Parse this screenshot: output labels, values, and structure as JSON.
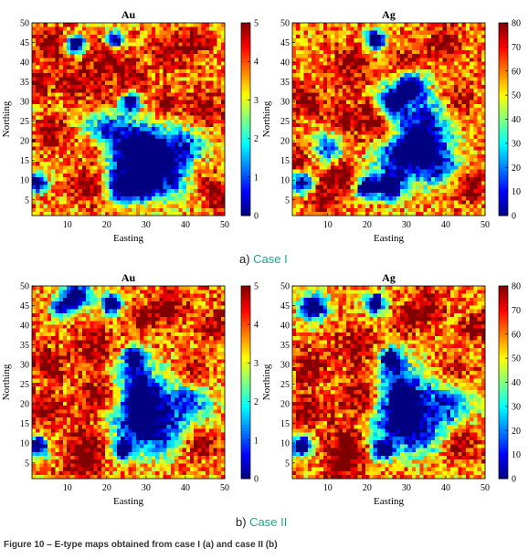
{
  "figure_caption": "Figure 10 – E-type maps obtained from case I (a) and case II (b)",
  "case_labels": [
    {
      "prefix": "a) ",
      "name": "Case I"
    },
    {
      "prefix": "b) ",
      "name": "Case II"
    }
  ],
  "chart_data": [
    {
      "type": "heatmap",
      "title": "Au",
      "xlabel": "Easting",
      "ylabel": "Northing",
      "xlim": [
        1,
        50
      ],
      "ylim": [
        1,
        50
      ],
      "xticks": [
        10,
        20,
        30,
        40,
        50
      ],
      "yticks": [
        5,
        10,
        15,
        20,
        25,
        30,
        35,
        40,
        45,
        50
      ],
      "colorbar": {
        "min": 0,
        "max": 5,
        "ticks": [
          0,
          1,
          2,
          3,
          4,
          5
        ]
      },
      "grid_size": [
        50,
        50
      ],
      "highs": [
        [
          20,
          42,
          3.5
        ],
        [
          19,
          30,
          3
        ],
        [
          17,
          18,
          3
        ],
        [
          15,
          8,
          3
        ],
        [
          12,
          35,
          3
        ],
        [
          5,
          45,
          3
        ],
        [
          42,
          45,
          3
        ],
        [
          45,
          28,
          3.5
        ],
        [
          6,
          22,
          3
        ],
        [
          43,
          12,
          3
        ],
        [
          35,
          42,
          2.5
        ],
        [
          26,
          36,
          2.5
        ],
        [
          35,
          30,
          2.5
        ],
        [
          48,
          6,
          2.5
        ],
        [
          2,
          35,
          2.5
        ]
      ],
      "lows": [
        [
          24,
          8,
          1.3
        ],
        [
          29,
          8,
          1.2
        ],
        [
          26,
          30,
          0.8
        ],
        [
          12,
          45,
          0.8
        ],
        [
          22,
          46,
          0.8
        ],
        [
          2,
          9,
          0.8
        ],
        [
          32,
          16,
          1.7
        ],
        [
          29,
          20,
          1.8
        ],
        [
          25,
          15,
          2.0
        ],
        [
          40,
          18,
          2.2
        ],
        [
          36,
          10,
          2.1
        ],
        [
          20,
          23,
          2.2
        ]
      ],
      "seed": 11
    },
    {
      "type": "heatmap",
      "title": "Ag",
      "xlabel": "Easting",
      "ylabel": "Northing",
      "xlim": [
        1,
        50
      ],
      "ylim": [
        1,
        50
      ],
      "xticks": [
        10,
        20,
        30,
        40,
        50
      ],
      "yticks": [
        5,
        10,
        15,
        20,
        25,
        30,
        35,
        40,
        45,
        50
      ],
      "colorbar": {
        "min": 0,
        "max": 80,
        "ticks": [
          0,
          10,
          20,
          30,
          40,
          50,
          60,
          70,
          80
        ]
      },
      "grid_size": [
        50,
        50
      ],
      "highs": [
        [
          16,
          40,
          3.5
        ],
        [
          14,
          25,
          3.5
        ],
        [
          13,
          12,
          3.5
        ],
        [
          8,
          5,
          3
        ],
        [
          4,
          30,
          3
        ],
        [
          43,
          30,
          3
        ],
        [
          40,
          45,
          3
        ],
        [
          46,
          8,
          3
        ],
        [
          24,
          22,
          3
        ],
        [
          30,
          40,
          2.5
        ],
        [
          22,
          28,
          2.5
        ],
        [
          2,
          15,
          2.5
        ]
      ],
      "lows": [
        [
          20,
          8,
          1.0
        ],
        [
          26,
          8,
          1.2
        ],
        [
          22,
          46,
          0.9
        ],
        [
          31,
          34,
          1.2
        ],
        [
          26,
          30,
          1.3
        ],
        [
          10,
          18,
          1.5
        ],
        [
          3,
          9,
          0.9
        ],
        [
          33,
          18,
          2.0
        ],
        [
          38,
          14,
          2.1
        ],
        [
          27,
          16,
          2.1
        ],
        [
          35,
          26,
          2.3
        ]
      ],
      "seed": 23
    },
    {
      "type": "heatmap",
      "title": "Au",
      "xlabel": "Easting",
      "ylabel": "Northing",
      "xlim": [
        1,
        50
      ],
      "ylim": [
        1,
        50
      ],
      "xticks": [
        10,
        20,
        30,
        40,
        50
      ],
      "yticks": [
        5,
        10,
        15,
        20,
        25,
        30,
        35,
        40,
        45,
        50
      ],
      "colorbar": {
        "min": 0,
        "max": 5,
        "ticks": [
          0,
          1,
          2,
          3,
          4,
          5
        ]
      },
      "grid_size": [
        50,
        50
      ],
      "highs": [
        [
          17,
          35,
          3.5
        ],
        [
          18,
          22,
          3.5
        ],
        [
          15,
          10,
          3.5
        ],
        [
          14,
          4,
          3
        ],
        [
          5,
          30,
          3
        ],
        [
          4,
          18,
          3
        ],
        [
          42,
          28,
          3
        ],
        [
          44,
          10,
          3
        ],
        [
          36,
          45,
          3
        ],
        [
          8,
          45,
          2.5
        ],
        [
          30,
          42,
          2.5
        ],
        [
          48,
          40,
          2.5
        ]
      ],
      "lows": [
        [
          8,
          45,
          1.0
        ],
        [
          12,
          48,
          1.2
        ],
        [
          21,
          46,
          0.9
        ],
        [
          27,
          32,
          0.9
        ],
        [
          24,
          8,
          0.9
        ],
        [
          2,
          9,
          0.9
        ],
        [
          30,
          20,
          1.7
        ],
        [
          26,
          15,
          2.0
        ],
        [
          33,
          12,
          2.0
        ],
        [
          28,
          26,
          2.0
        ],
        [
          40,
          20,
          2.3
        ]
      ],
      "seed": 37
    },
    {
      "type": "heatmap",
      "title": "Ag",
      "xlabel": "Easting",
      "ylabel": "Northing",
      "xlim": [
        1,
        50
      ],
      "ylim": [
        1,
        50
      ],
      "xticks": [
        10,
        20,
        30,
        40,
        50
      ],
      "yticks": [
        5,
        10,
        15,
        20,
        25,
        30,
        35,
        40,
        45,
        50
      ],
      "colorbar": {
        "min": 0,
        "max": 80,
        "ticks": [
          0,
          10,
          20,
          30,
          40,
          50,
          60,
          70,
          80
        ]
      },
      "grid_size": [
        50,
        50
      ],
      "highs": [
        [
          17,
          35,
          3.5
        ],
        [
          18,
          22,
          3.5
        ],
        [
          15,
          10,
          3.5
        ],
        [
          14,
          4,
          3
        ],
        [
          5,
          30,
          3
        ],
        [
          4,
          18,
          3
        ],
        [
          42,
          28,
          3
        ],
        [
          44,
          10,
          3
        ],
        [
          36,
          45,
          3
        ],
        [
          30,
          42,
          2.5
        ],
        [
          48,
          40,
          2.5
        ]
      ],
      "lows": [
        [
          6,
          45,
          1.2
        ],
        [
          22,
          46,
          0.9
        ],
        [
          26,
          32,
          0.9
        ],
        [
          24,
          8,
          0.9
        ],
        [
          3,
          9,
          0.9
        ],
        [
          30,
          20,
          1.7
        ],
        [
          26,
          15,
          2.0
        ],
        [
          33,
          12,
          2.0
        ],
        [
          28,
          26,
          2.0
        ],
        [
          40,
          20,
          2.3
        ]
      ],
      "seed": 41
    }
  ]
}
